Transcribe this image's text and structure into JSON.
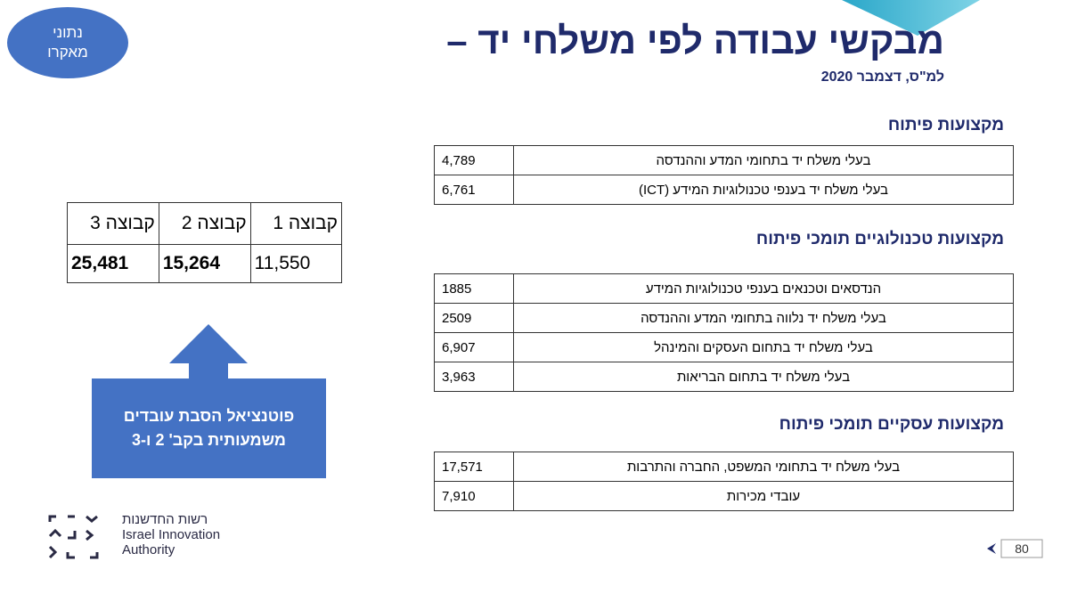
{
  "badge": {
    "lines": [
      "נתוני",
      "מאקרו"
    ]
  },
  "header": {
    "title": "מבקשי עבודה לפי משלחי יד –",
    "subtitle": "למ\"ס, דצמבר 2020"
  },
  "sections": [
    {
      "heading": "מקצועות פיתוח",
      "rows": [
        [
          "בעלי משלח יד בתחומי המדע וההנדסה",
          "4,789"
        ],
        [
          "בעלי משלח יד בענפי טכנולוגיות המידע (ICT)",
          "6,761"
        ]
      ]
    },
    {
      "heading": "מקצועות טכנולוגיים תומכי פיתוח",
      "rows": [
        [
          "הנדסאים וטכנאים בענפי טכנולוגיות המידע",
          "1885"
        ],
        [
          "בעלי משלח יד נלווה בתחומי המדע וההנדסה",
          "2509"
        ],
        [
          "בעלי משלח יד בתחום העסקים והמינהל",
          "6,907"
        ],
        [
          "בעלי משלח יד בתחום הבריאות",
          "3,963"
        ]
      ]
    },
    {
      "heading": "מקצועות עסקיים תומכי פיתוח",
      "rows": [
        [
          "בעלי משלח יד בתחומי המשפט, החברה והתרבות",
          "17,571"
        ],
        [
          "עובדי מכירות",
          "7,910"
        ]
      ]
    }
  ],
  "groups": {
    "headers": [
      "קבוצה 1",
      "קבוצה 2",
      "קבוצה 3"
    ],
    "values": [
      "11,550",
      "15,264",
      "25,481"
    ]
  },
  "callout": {
    "lines": [
      "פוטנציאל הסבת עובדים",
      "משמעותית בקב' 2 ו-3"
    ]
  },
  "logo": {
    "hebrew": "רשות החדשנות",
    "english": [
      "Israel Innovation",
      "Authority"
    ]
  },
  "page_number": "80"
}
